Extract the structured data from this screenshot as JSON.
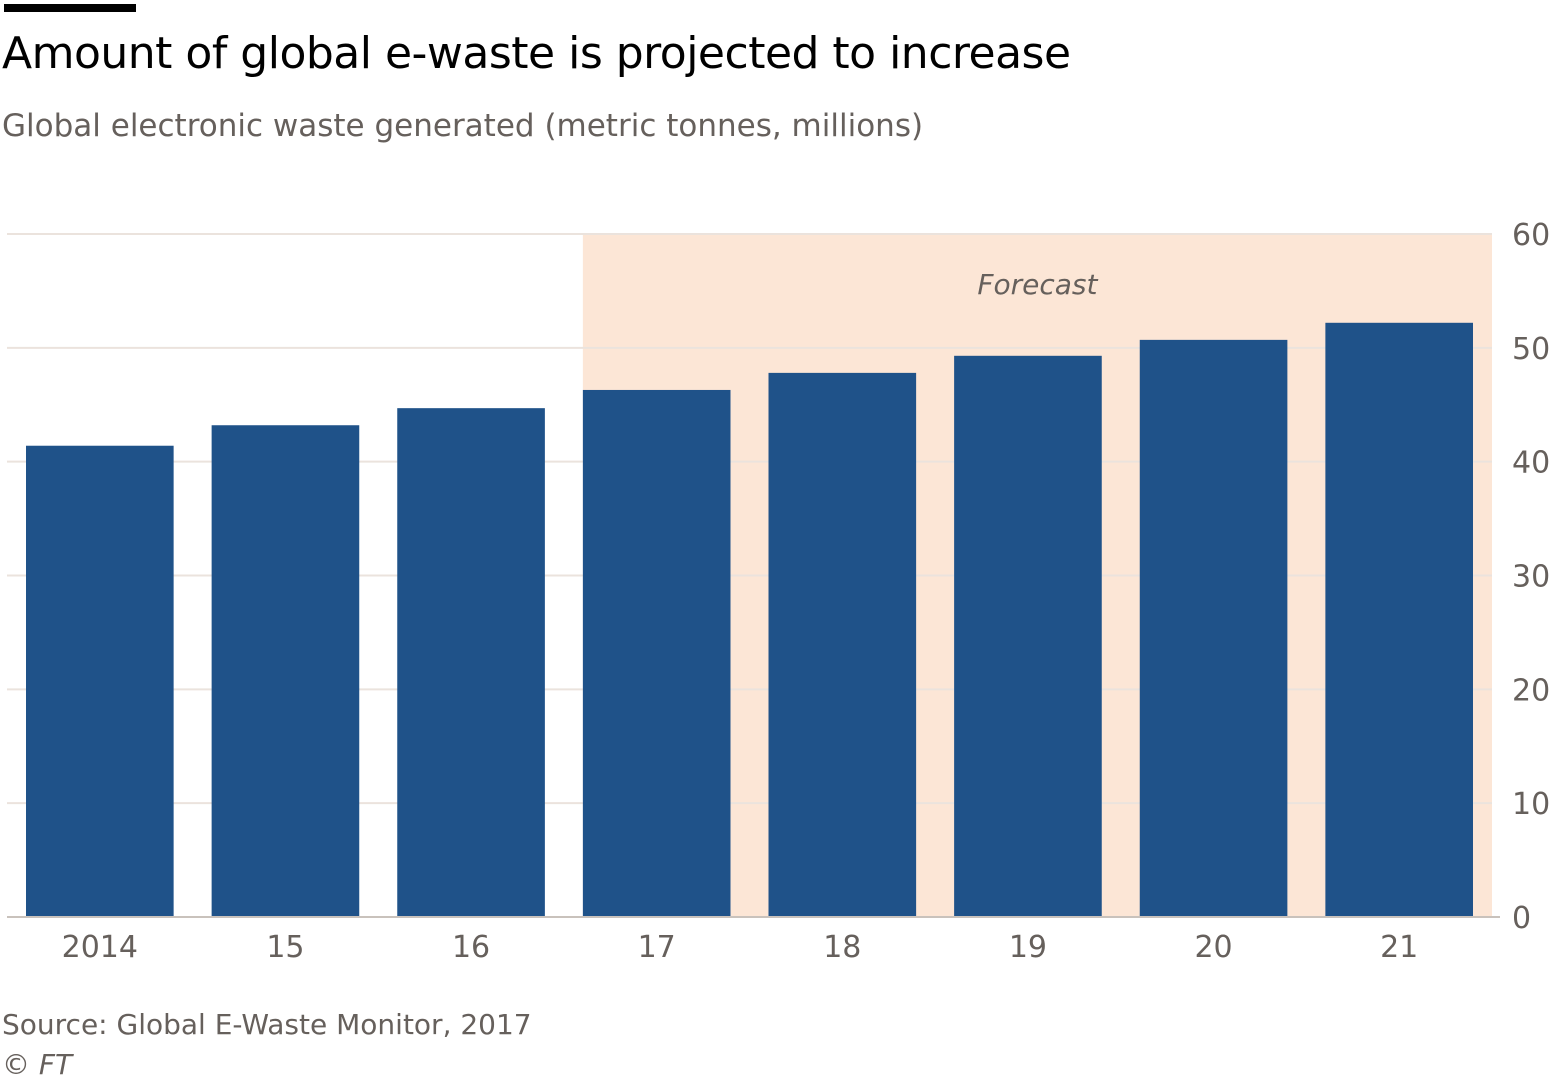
{
  "header": {
    "title": "Amount of global e-waste is projected to increase",
    "subtitle": "Global electronic waste generated (metric tonnes, millions)"
  },
  "chart_data": {
    "type": "bar",
    "categories": [
      "2014",
      "15",
      "16",
      "17",
      "18",
      "19",
      "20",
      "21"
    ],
    "values": [
      41.4,
      43.2,
      44.7,
      46.3,
      47.8,
      49.3,
      50.7,
      52.2
    ],
    "ylim": [
      0,
      60
    ],
    "yticks": [
      0,
      10,
      20,
      30,
      40,
      50,
      60
    ],
    "y_axis_position": "right",
    "grid": true,
    "bar_color": "#1f5289",
    "forecast": {
      "label": "Forecast",
      "from_category": "17",
      "to_category": "21",
      "color": "#fce6d6"
    }
  },
  "footer": {
    "source": "Source: Global E-Waste Monitor, 2017",
    "credit": "© FT"
  },
  "colors": {
    "title": "#000000",
    "text_muted": "#66605c",
    "grid": "#ebe3dd",
    "axis": "#c9c2bc"
  }
}
